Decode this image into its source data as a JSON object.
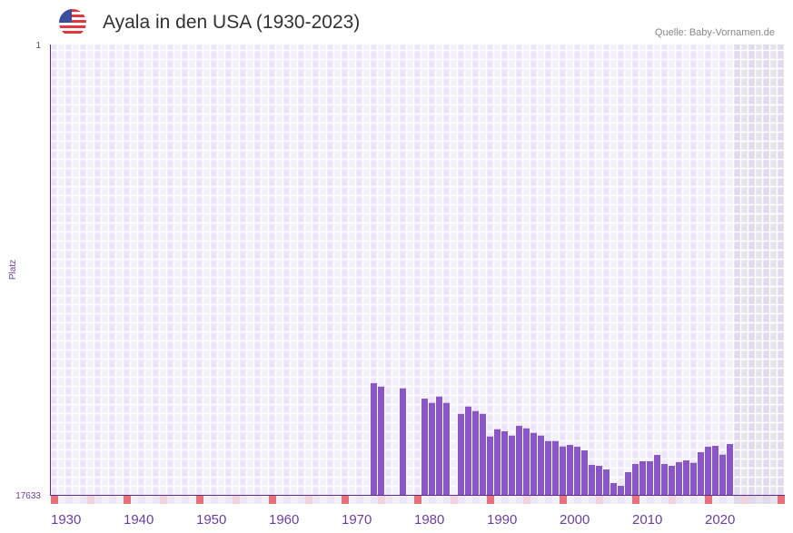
{
  "header": {
    "title": "Ayala in den USA (1930-2023)",
    "source": "Quelle: Baby-Vornamen.de",
    "flag_icon": "us-flag-icon"
  },
  "chart_data": {
    "type": "bar",
    "title": "Ayala in den USA (1930-2023)",
    "ylabel": "Platz",
    "xlabel": "",
    "ylim": [
      17633,
      1
    ],
    "y_ticks": [
      "1",
      "17633"
    ],
    "x_ticks": [
      "1930",
      "1940",
      "1950",
      "1960",
      "1970",
      "1980",
      "1990",
      "2000",
      "2010",
      "2020"
    ],
    "xlim": [
      1930,
      2030
    ],
    "colors": {
      "bar": "#8b55c7",
      "axis": "#5a2d8f",
      "decade": "#e8707a",
      "half": "#f2d3dd",
      "future": "#e3dfec"
    },
    "x": [
      1974,
      1975,
      1978,
      1981,
      1982,
      1983,
      1984,
      1986,
      1987,
      1988,
      1989,
      1990,
      1991,
      1992,
      1993,
      1994,
      1995,
      1996,
      1997,
      1998,
      1999,
      2000,
      2001,
      2002,
      2003,
      2004,
      2005,
      2006,
      2007,
      2008,
      2009,
      2010,
      2011,
      2012,
      2013,
      2014,
      2015,
      2016,
      2017,
      2018,
      2019,
      2020,
      2021,
      2022,
      2023
    ],
    "values": [
      13261,
      13393,
      13464,
      13866,
      14033,
      13784,
      14033,
      14459,
      14175,
      14353,
      14459,
      15348,
      15064,
      15145,
      15312,
      14932,
      15028,
      15206,
      15312,
      15525,
      15525,
      15739,
      15679,
      15750,
      15892,
      16461,
      16496,
      16639,
      17172,
      17279,
      16745,
      16425,
      16318,
      16318,
      16070,
      16425,
      16496,
      16354,
      16283,
      16379,
      15963,
      15750,
      15714,
      16059,
      15643
    ]
  }
}
